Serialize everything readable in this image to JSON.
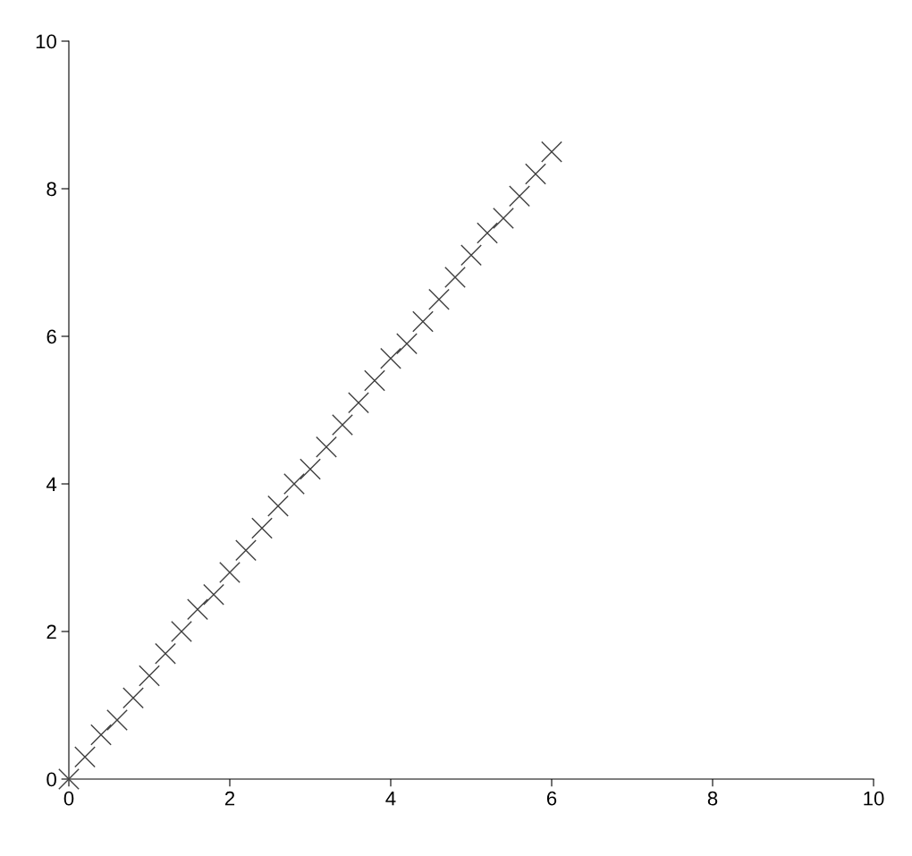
{
  "chart_data": {
    "type": "scatter",
    "x": [
      0,
      0.2,
      0.4,
      0.6,
      0.8,
      1.0,
      1.2,
      1.4,
      1.6,
      1.8,
      2.0,
      2.2,
      2.4,
      2.6,
      2.8,
      3.0,
      3.2,
      3.4,
      3.6,
      3.8,
      4.0,
      4.2,
      4.4,
      4.6,
      4.8,
      5.0,
      5.2,
      5.4,
      5.6,
      5.8,
      6.0
    ],
    "series": [
      {
        "color": "#404040",
        "values": [
          0,
          0.3,
          0.6,
          0.8,
          1.1,
          1.4,
          1.7,
          2.0,
          2.3,
          2.5,
          2.8,
          3.1,
          3.4,
          3.7,
          4.0,
          4.2,
          4.5,
          4.8,
          5.1,
          5.4,
          5.7,
          5.9,
          6.2,
          6.5,
          6.8,
          7.1,
          7.4,
          7.6,
          7.9,
          8.2,
          8.5
        ]
      }
    ],
    "marker": "cross",
    "xlim": [
      0,
      10
    ],
    "ylim": [
      0,
      10
    ],
    "xticks": [
      0,
      2,
      4,
      6,
      8,
      10
    ],
    "yticks": [
      0,
      2,
      4,
      6,
      8,
      10
    ],
    "grid": false,
    "legend": false
  }
}
